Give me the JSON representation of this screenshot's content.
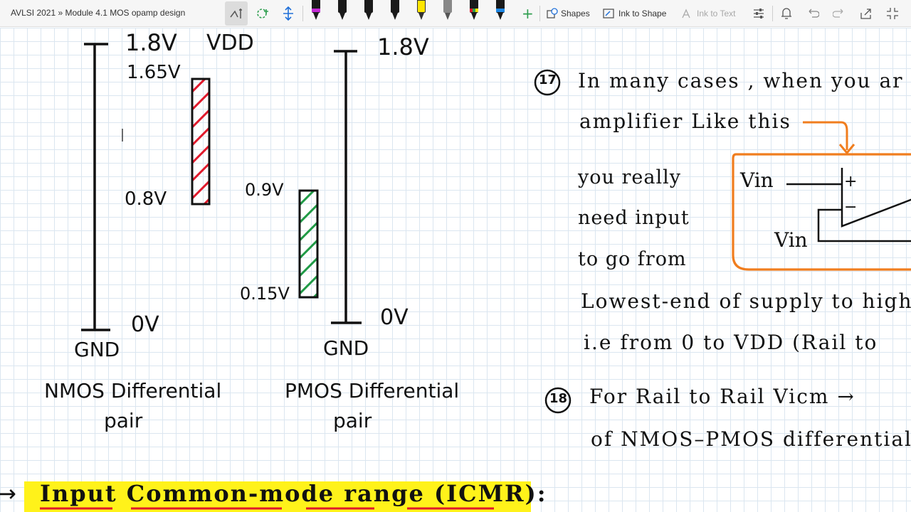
{
  "toolbar": {
    "title": "AVLSI 2021 » Module 4.1 MOS opamp design",
    "shapes_label": "Shapes",
    "ink_to_shape_label": "Ink to Shape",
    "ink_to_text_label": "Ink to Text",
    "pen_colors": [
      "#222222",
      "#111111",
      "#111111",
      "#111111",
      "#ffe600",
      "#777777",
      "#2e7d32",
      "#1e88e5"
    ]
  },
  "notes": {
    "nmos_scale": {
      "top_voltage": "1.8V",
      "vdd_label": "VDD",
      "upper_limit": "1.65V",
      "lower_limit": "0.8V",
      "bottom_voltage": "0V",
      "ground_label": "GND",
      "caption_line1": "NMOS Differential",
      "caption_line2": "pair"
    },
    "pmos_scale": {
      "top_voltage": "1.8V",
      "upper_limit": "0.9V",
      "lower_limit": "0.15V",
      "bottom_voltage": "0V",
      "ground_label": "GND",
      "caption_line1": "PMOS Differential",
      "caption_line2": "pair"
    },
    "point17": {
      "number": "17",
      "line1": "In many cases , when you ar",
      "line2": "amplifier Like this",
      "line3": "you really",
      "line4": "need input",
      "line5": "to go from",
      "line6": "Lowest-end of supply to higher",
      "line7": "i.e from 0 to VDD (Rail to",
      "vin_plus": "Vin",
      "vin_minus": "Vin",
      "plus_sign": "+",
      "minus_sign": "−"
    },
    "point18": {
      "number": "18",
      "line1": "For Rail to Rail Vicm →",
      "line2": "of NMOS–PMOS differential"
    },
    "heading": {
      "arrow": "→",
      "text": "Input Common-mode range (ICMR):"
    },
    "colors": {
      "ink": "#111111",
      "red_hatch": "#e0192b",
      "green_hatch": "#1f9a45",
      "orange_box": "#f07d1e",
      "highlight": "#fff21a"
    }
  }
}
